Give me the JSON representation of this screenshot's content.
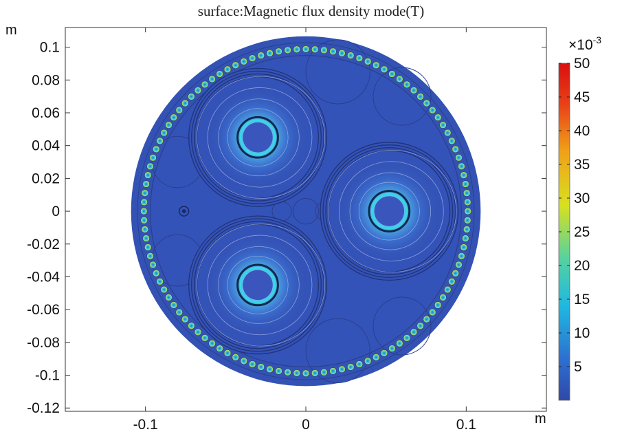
{
  "chart_data": {
    "type": "heatmap",
    "title": "surface:Magnetic flux density mode(T)",
    "x_unit": "m",
    "y_unit": "m",
    "xlim": [
      -0.15,
      0.15
    ],
    "ylim": [
      -0.122,
      0.112
    ],
    "x_ticks": [
      -0.1,
      0,
      0.1
    ],
    "x_tick_labels": [
      "-0.1",
      "0",
      "0.1"
    ],
    "y_ticks": [
      0.1,
      0.08,
      0.06,
      0.04,
      0.02,
      0,
      -0.02,
      -0.04,
      -0.06,
      -0.08,
      -0.1,
      -0.12
    ],
    "y_tick_labels": [
      "0.1",
      "0.08",
      "0.06",
      "0.04",
      "0.02",
      "0",
      "-0.02",
      "-0.04",
      "-0.06",
      "-0.08",
      "-0.1",
      "-0.12"
    ],
    "cable": {
      "center": [
        0.0,
        0.0
      ],
      "outer_radius": 0.109,
      "armor_ring_radius": 0.101,
      "armor_wire_radius": 0.0021,
      "armor_wire_count": 112
    },
    "cores": [
      {
        "center": [
          -0.03,
          0.045
        ],
        "conductor_radius": 0.012,
        "insulation_radius": 0.043
      },
      {
        "center": [
          0.052,
          0.0
        ],
        "conductor_radius": 0.012,
        "insulation_radius": 0.043
      },
      {
        "center": [
          -0.03,
          -0.045
        ],
        "conductor_radius": 0.012,
        "insulation_radius": 0.043
      }
    ],
    "small_element": {
      "center": [
        -0.076,
        0.0
      ],
      "radius": 0.003
    },
    "colorbar": {
      "multiplier_label": "×10",
      "multiplier_exponent": "-3",
      "min": 0,
      "max": 50,
      "ticks": [
        5,
        10,
        15,
        20,
        25,
        30,
        35,
        40,
        45,
        50
      ],
      "tick_labels": [
        "5",
        "10",
        "15",
        "20",
        "25",
        "30",
        "35",
        "40",
        "45",
        "50"
      ],
      "colormap": [
        "#3048a8",
        "#2d6fd0",
        "#1fb8e0",
        "#55d2a0",
        "#d8e020",
        "#f0a018",
        "#e84018",
        "#d81010"
      ]
    },
    "grid": false
  }
}
